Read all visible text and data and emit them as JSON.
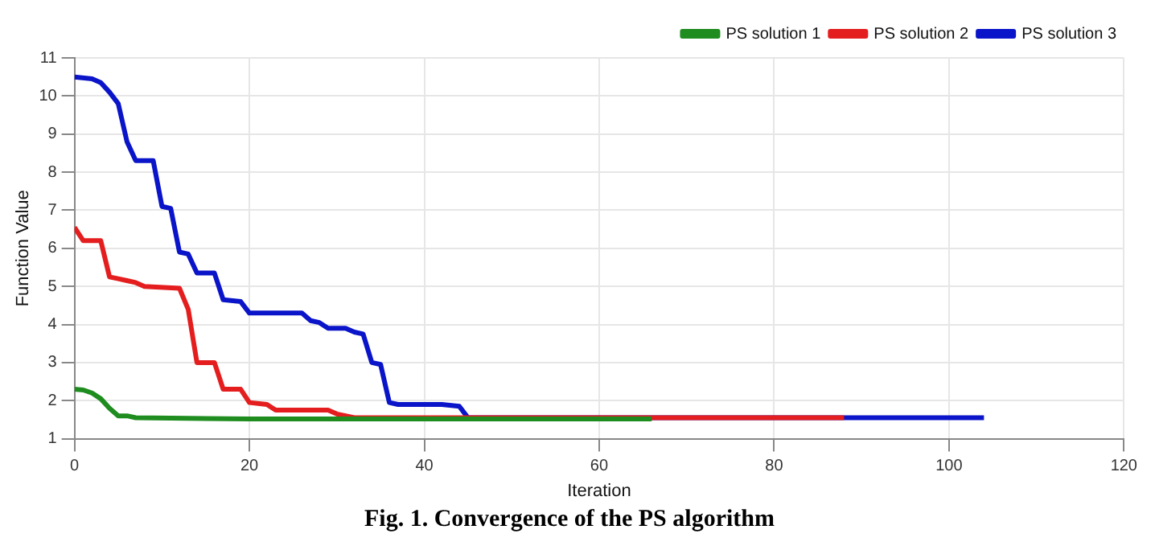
{
  "chart_data": {
    "type": "line",
    "title": "Fig. 1. Convergence of the PS algorithm",
    "xlabel": "Iteration",
    "ylabel": "Function Value",
    "xlim": [
      0,
      120
    ],
    "xticks": [
      0,
      20,
      40,
      60,
      80,
      100,
      120
    ],
    "ylim": [
      1,
      11
    ],
    "yticks": [
      1,
      2,
      3,
      4,
      5,
      6,
      7,
      8,
      9,
      10,
      11
    ],
    "grid": true,
    "legend": "top right",
    "marker": "none",
    "line_style": "solid",
    "series": [
      {
        "name": "PS solution 3",
        "color": "#0a14c8",
        "x": [
          0,
          2,
          3,
          4,
          5,
          6,
          7,
          9,
          10,
          11,
          12,
          13,
          14,
          16,
          17,
          19,
          20,
          26,
          27,
          28,
          29,
          31,
          32,
          33,
          34,
          35,
          36,
          37,
          42,
          44,
          45,
          104
        ],
        "values": [
          10.5,
          10.45,
          10.35,
          10.1,
          9.8,
          8.8,
          8.3,
          8.3,
          7.1,
          7.05,
          5.9,
          5.85,
          5.35,
          5.35,
          4.65,
          4.6,
          4.3,
          4.3,
          4.1,
          4.05,
          3.9,
          3.9,
          3.8,
          3.75,
          3.0,
          2.95,
          1.95,
          1.9,
          1.9,
          1.85,
          1.55,
          1.55
        ]
      },
      {
        "name": "PS solution 2",
        "color": "#e41e1e",
        "x": [
          0,
          1,
          3,
          4,
          5,
          6,
          7,
          8,
          12,
          13,
          14,
          16,
          17,
          19,
          20,
          22,
          23,
          29,
          30,
          31,
          32,
          88
        ],
        "values": [
          6.55,
          6.2,
          6.2,
          5.25,
          5.2,
          5.15,
          5.1,
          5.0,
          4.95,
          4.4,
          3.0,
          3.0,
          2.3,
          2.3,
          1.95,
          1.9,
          1.75,
          1.75,
          1.65,
          1.6,
          1.55,
          1.55
        ]
      },
      {
        "name": "PS solution 1",
        "color": "#1e8c1e",
        "x": [
          0,
          1,
          2,
          3,
          4,
          5,
          6,
          7,
          20,
          66
        ],
        "values": [
          2.3,
          2.28,
          2.2,
          2.05,
          1.8,
          1.6,
          1.6,
          1.55,
          1.52,
          1.52
        ]
      }
    ]
  }
}
